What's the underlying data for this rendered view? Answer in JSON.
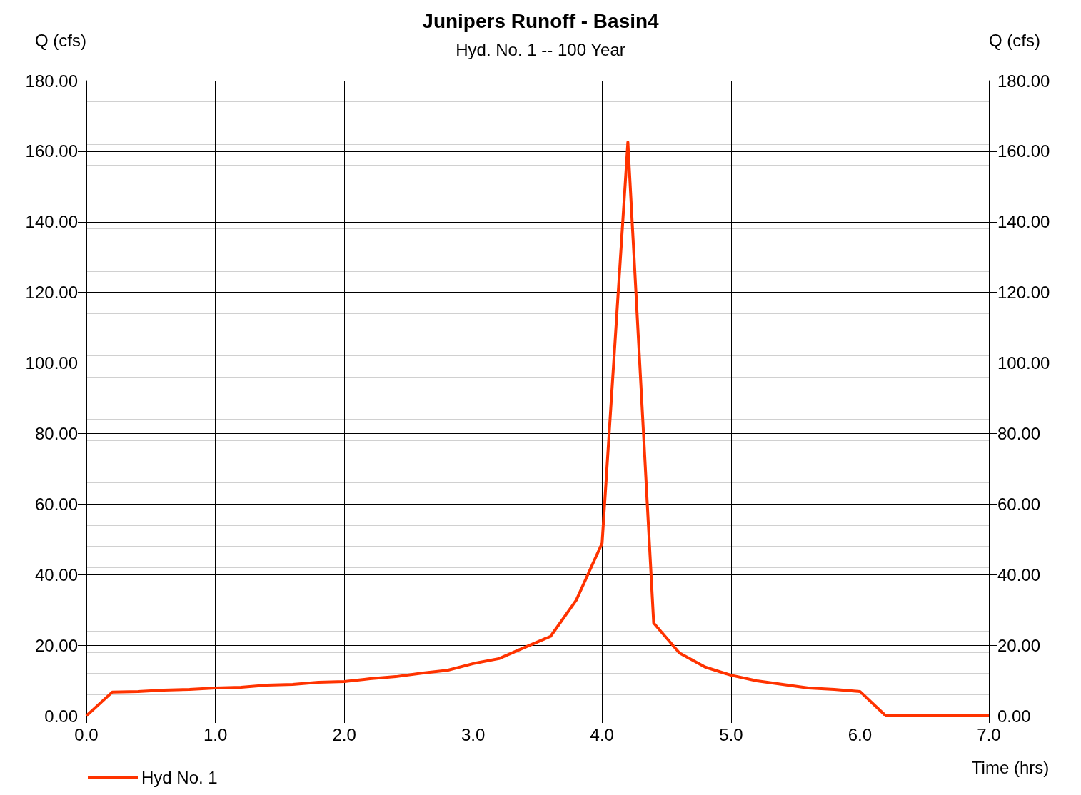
{
  "chart_data": {
    "type": "line",
    "title": "Junipers Runoff - Basin4",
    "subtitle": "Hyd. No. 1 -- 100 Year",
    "xlabel": "Time (hrs)",
    "ylabel": "Q (cfs)",
    "y2label": "Q (cfs)",
    "x": [
      0,
      0.2,
      0.4,
      0.6,
      0.8,
      1.0,
      1.2,
      1.4,
      1.6,
      1.8,
      2.0,
      2.2,
      2.4,
      2.6,
      2.8,
      3.0,
      3.2,
      3.4,
      3.6,
      3.8,
      4.0,
      4.2,
      4.4,
      4.6,
      4.8,
      5.0,
      5.2,
      5.4,
      5.6,
      5.8,
      6.0,
      6.2,
      6.4,
      6.6,
      6.8,
      7.0
    ],
    "series": [
      {
        "name": "Hyd No. 1",
        "color": "#ff3300",
        "values": [
          0,
          6.7,
          6.9,
          7.3,
          7.5,
          7.9,
          8.1,
          8.7,
          8.9,
          9.5,
          9.7,
          10.5,
          11.1,
          12.1,
          12.9,
          14.8,
          16.2,
          19.4,
          22.5,
          32.8,
          48.9,
          162.6,
          26.3,
          17.8,
          13.8,
          11.5,
          9.9,
          8.9,
          7.9,
          7.5,
          6.9,
          0,
          0,
          0,
          0,
          0
        ]
      }
    ],
    "xlim": [
      0,
      7
    ],
    "xticks": [
      {
        "value": 0,
        "label": "0.0"
      },
      {
        "value": 1,
        "label": "1.0"
      },
      {
        "value": 2,
        "label": "2.0"
      },
      {
        "value": 3,
        "label": "3.0"
      },
      {
        "value": 4,
        "label": "4.0"
      },
      {
        "value": 5,
        "label": "5.0"
      },
      {
        "value": 6,
        "label": "6.0"
      },
      {
        "value": 7,
        "label": "7.0"
      }
    ],
    "ylim": [
      0,
      180
    ],
    "yticks": [
      {
        "value": 0,
        "label": "0.00"
      },
      {
        "value": 20,
        "label": "20.00"
      },
      {
        "value": 40,
        "label": "40.00"
      },
      {
        "value": 60,
        "label": "60.00"
      },
      {
        "value": 80,
        "label": "80.00"
      },
      {
        "value": 100,
        "label": "100.00"
      },
      {
        "value": 120,
        "label": "120.00"
      },
      {
        "value": 140,
        "label": "140.00"
      },
      {
        "value": 160,
        "label": "160.00"
      },
      {
        "value": 180,
        "label": "180.00"
      }
    ],
    "y2lim": [
      0,
      180
    ],
    "y2ticks": [
      {
        "value": 0,
        "label": "0.00"
      },
      {
        "value": 20,
        "label": "20.00"
      },
      {
        "value": 40,
        "label": "40.00"
      },
      {
        "value": 60,
        "label": "60.00"
      },
      {
        "value": 80,
        "label": "80.00"
      },
      {
        "value": 100,
        "label": "100.00"
      },
      {
        "value": 120,
        "label": "120.00"
      },
      {
        "value": 140,
        "label": "140.00"
      },
      {
        "value": 160,
        "label": "160.00"
      },
      {
        "value": 180,
        "label": "180.00"
      }
    ],
    "grid": true,
    "legend": "bottom left",
    "marker": "none",
    "line_style": "solid"
  }
}
